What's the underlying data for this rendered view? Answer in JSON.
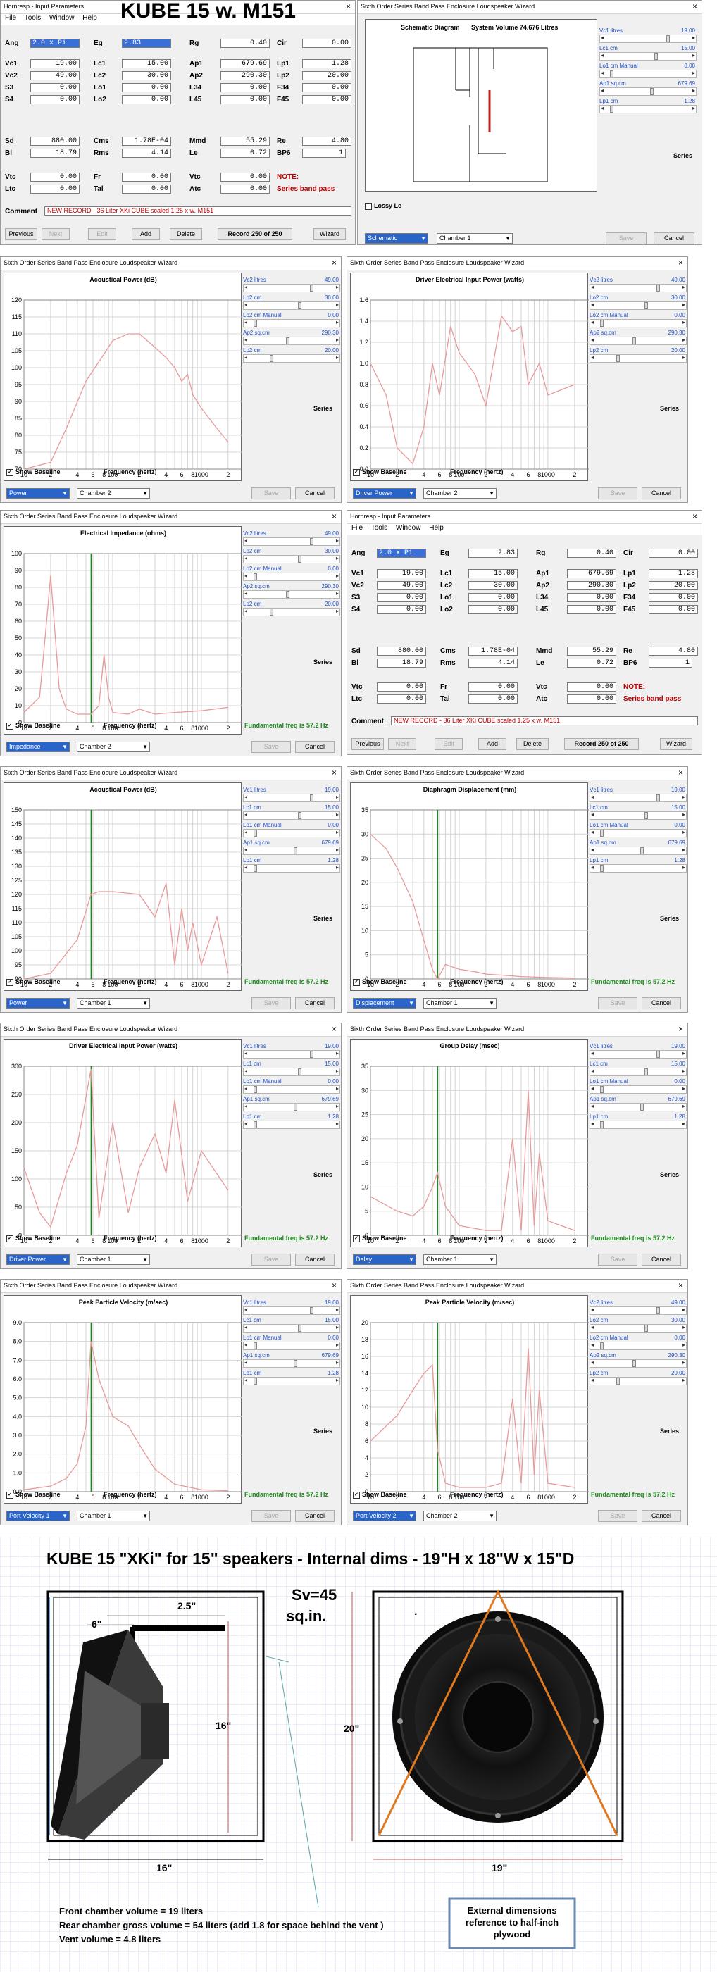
{
  "inputs": {
    "title": "Hornresp - Input Parameters",
    "banner": "KUBE 15 w. M151",
    "menu": [
      "File",
      "Tools",
      "Window",
      "Help"
    ],
    "params": [
      {
        "k": "Ang",
        "v": "2.0 x Pi"
      },
      {
        "k": "Eg",
        "v": "2.83"
      },
      {
        "k": "Rg",
        "v": "0.40"
      },
      {
        "k": "Cir",
        "v": "0.00"
      },
      {
        "k": "Vc1",
        "v": "19.00"
      },
      {
        "k": "Lc1",
        "v": "15.00"
      },
      {
        "k": "Ap1",
        "v": "679.69"
      },
      {
        "k": "Lp1",
        "v": "1.28"
      },
      {
        "k": "Vc2",
        "v": "49.00"
      },
      {
        "k": "Lc2",
        "v": "30.00"
      },
      {
        "k": "Ap2",
        "v": "290.30"
      },
      {
        "k": "Lp2",
        "v": "20.00"
      },
      {
        "k": "S3",
        "v": "0.00"
      },
      {
        "k": "Lo1",
        "v": "0.00"
      },
      {
        "k": "L34",
        "v": "0.00"
      },
      {
        "k": "F34",
        "v": "0.00"
      },
      {
        "k": "S4",
        "v": "0.00"
      },
      {
        "k": "Lo2",
        "v": "0.00"
      },
      {
        "k": "L45",
        "v": "0.00"
      },
      {
        "k": "F45",
        "v": "0.00"
      },
      {
        "k": "Sd",
        "v": "880.00"
      },
      {
        "k": "Cms",
        "v": "1.78E-04"
      },
      {
        "k": "Mmd",
        "v": "55.29"
      },
      {
        "k": "Re",
        "v": "4.80"
      },
      {
        "k": "Bl",
        "v": "18.79"
      },
      {
        "k": "Rms",
        "v": "4.14"
      },
      {
        "k": "Le",
        "v": "0.72"
      },
      {
        "k": "BP6",
        "v": "1"
      },
      {
        "k": "Vtc",
        "v": "0.00"
      },
      {
        "k": "Fr",
        "v": "0.00"
      },
      {
        "k": "Vtc",
        "v": "0.00"
      },
      {
        "k": "NOTE:",
        "v": ""
      },
      {
        "k": "Ltc",
        "v": "0.00"
      },
      {
        "k": "Tal",
        "v": "0.00"
      },
      {
        "k": "Atc",
        "v": "0.00"
      },
      {
        "k": "Series band pass",
        "v": ""
      }
    ],
    "comment_label": "Comment",
    "comment": "NEW RECORD - 36 Liter XKi CUBE   scaled 1.25 x  w. M151",
    "comment2": "NEW RECORD - 36 Liter XKi CUBE  scaled 1.25 x  w. M151",
    "buttons": [
      "Previous",
      "Next",
      "Edit",
      "Add",
      "Delete",
      "Record 250 of 250",
      "Wizard"
    ]
  },
  "schematic": {
    "title": "Sixth Order Series Band Pass Enclosure Loudspeaker Wizard",
    "heading": "Schematic Diagram",
    "volume": "System Volume 74.676 Litres",
    "lossy": "Lossy Le",
    "mode": "Schematic",
    "chamber": "Chamber 1",
    "save": "Save",
    "cancel": "Cancel"
  },
  "common": {
    "wizard_title": "Sixth Order Series Band Pass Enclosure Loudspeaker Wizard",
    "show_baseline": "Show Baseline",
    "series": "Series",
    "freq_label": "Frequency (hertz)",
    "fund": "Fundamental freq is 57.2 Hz",
    "save": "Save",
    "cancel": "Cancel",
    "ch1": "Chamber 1",
    "ch2": "Chamber 2",
    "x_ticks": [
      "10",
      "2",
      "4",
      "6",
      "8",
      "100",
      "2",
      "4",
      "6",
      "8",
      "1000",
      "2"
    ]
  },
  "controls_ch1": [
    {
      "label": "Vc1  litres",
      "value": "19.00",
      "pos": 0.75
    },
    {
      "label": "Lc1  cm",
      "value": "15.00",
      "pos": 0.6
    },
    {
      "label": "Lo1  cm  Manual",
      "value": "0.00",
      "pos": 0.05
    },
    {
      "label": "Ap1  sq.cm",
      "value": "679.69",
      "pos": 0.55
    },
    {
      "label": "Lp1  cm",
      "value": "1.28",
      "pos": 0.05
    }
  ],
  "controls_ch2": [
    {
      "label": "Vc2  litres",
      "value": "49.00",
      "pos": 0.75
    },
    {
      "label": "Lo2  cm",
      "value": "30.00",
      "pos": 0.6
    },
    {
      "label": "Lo2  cm  Manual",
      "value": "0.00",
      "pos": 0.05
    },
    {
      "label": "Ap2  sq.cm",
      "value": "290.30",
      "pos": 0.45
    },
    {
      "label": "Lp2  cm",
      "value": "20.00",
      "pos": 0.25
    }
  ],
  "charts": [
    {
      "id": "c1",
      "title": "Acoustical Power (dB)",
      "mode": "Power",
      "chamber": "Chamber 2",
      "ch": 2,
      "y_ticks": [
        "120",
        "115",
        "110",
        "105",
        "100",
        "95",
        "90",
        "85",
        "80",
        "75",
        "70"
      ],
      "fund": false,
      "chart_data": {
        "type": "line",
        "ylim": [
          70,
          120
        ],
        "x": [
          10,
          20,
          30,
          50,
          80,
          100,
          150,
          200,
          300,
          400,
          500,
          600,
          700,
          800,
          1000,
          1500,
          2000
        ],
        "values": [
          70,
          72,
          82,
          96,
          104,
          108,
          110,
          110,
          106,
          103,
          100,
          96,
          98,
          92,
          88,
          82,
          78
        ]
      }
    },
    {
      "id": "c2",
      "title": "Driver Electrical Input Power (watts)",
      "mode": "Driver Power",
      "chamber": "Chamber 2",
      "ch": 2,
      "y_ticks": [
        "1.6",
        "1.4",
        "1.2",
        "1.0",
        "0.8",
        "0.6",
        "0.4",
        "0.2",
        "0.0"
      ],
      "fund": false,
      "chart_data": {
        "type": "line",
        "ylim": [
          0,
          1.6
        ],
        "x": [
          10,
          15,
          20,
          30,
          40,
          50,
          60,
          80,
          100,
          150,
          200,
          300,
          400,
          500,
          600,
          800,
          1000,
          2000
        ],
        "values": [
          1.0,
          0.7,
          0.2,
          0.05,
          0.4,
          1.0,
          0.7,
          1.35,
          1.1,
          0.9,
          0.6,
          1.45,
          1.3,
          1.35,
          0.8,
          1.0,
          0.7,
          0.8
        ]
      }
    },
    {
      "id": "c3",
      "title": "Electrical Impedance (ohms)",
      "mode": "Impedance",
      "chamber": "Chamber 2",
      "ch": 2,
      "y_ticks": [
        "100",
        "90",
        "80",
        "70",
        "60",
        "50",
        "40",
        "30",
        "20",
        "10",
        "0"
      ],
      "fund": true,
      "chart_data": {
        "type": "line",
        "ylim": [
          0,
          100
        ],
        "x": [
          10,
          15,
          18,
          20,
          25,
          30,
          40,
          57,
          70,
          80,
          90,
          100,
          150,
          200,
          300,
          500,
          1000,
          2000
        ],
        "values": [
          6,
          15,
          60,
          87,
          20,
          8,
          5,
          5,
          10,
          40,
          15,
          6,
          5,
          8,
          5,
          6,
          7,
          9
        ]
      }
    },
    {
      "id": "c4",
      "title": "Acoustical Power (dB)",
      "mode": "Power",
      "chamber": "Chamber 1",
      "ch": 1,
      "y_ticks": [
        "150",
        "145",
        "140",
        "135",
        "130",
        "125",
        "120",
        "115",
        "110",
        "105",
        "100",
        "95",
        "90"
      ],
      "fund": true,
      "chart_data": {
        "type": "line",
        "ylim": [
          90,
          150
        ],
        "x": [
          10,
          20,
          30,
          40,
          57,
          70,
          100,
          200,
          300,
          400,
          500,
          600,
          700,
          800,
          1000,
          1500,
          2000
        ],
        "values": [
          90,
          92,
          99,
          104,
          120,
          121,
          121,
          120,
          112,
          124,
          95,
          115,
          100,
          110,
          95,
          112,
          92
        ]
      }
    },
    {
      "id": "c5",
      "title": "Diaphragm Displacement (mm)",
      "mode": "Displacement",
      "chamber": "Chamber 1",
      "ch": 1,
      "y_ticks": [
        "35",
        "30",
        "25",
        "20",
        "15",
        "10",
        "5",
        "0"
      ],
      "fund": true,
      "chart_data": {
        "type": "line",
        "ylim": [
          0,
          35
        ],
        "x": [
          10,
          15,
          20,
          30,
          40,
          50,
          57,
          70,
          100,
          150,
          200,
          300,
          500,
          1000,
          2000
        ],
        "values": [
          30,
          27,
          23,
          16,
          8,
          2,
          0,
          3,
          2,
          1.5,
          1,
          0.8,
          0.5,
          0.3,
          0.2
        ]
      }
    },
    {
      "id": "c6",
      "title": "Driver Electrical Input Power (watts)",
      "mode": "Driver Power",
      "chamber": "Chamber 1",
      "ch": 1,
      "y_ticks": [
        "300",
        "250",
        "200",
        "150",
        "100",
        "50",
        "0"
      ],
      "fund": true,
      "chart_data": {
        "type": "line",
        "ylim": [
          0,
          300
        ],
        "x": [
          10,
          15,
          20,
          30,
          40,
          57,
          70,
          100,
          150,
          200,
          300,
          400,
          500,
          700,
          1000,
          2000
        ],
        "values": [
          120,
          40,
          15,
          110,
          160,
          295,
          30,
          200,
          40,
          120,
          180,
          110,
          240,
          60,
          150,
          80
        ]
      }
    },
    {
      "id": "c7",
      "title": "Group Delay (msec)",
      "mode": "Delay",
      "chamber": "Chamber 1",
      "ch": 1,
      "y_ticks": [
        "35",
        "30",
        "25",
        "20",
        "15",
        "10",
        "5",
        "0"
      ],
      "fund": true,
      "chart_data": {
        "type": "line",
        "ylim": [
          0,
          35
        ],
        "x": [
          10,
          20,
          30,
          40,
          50,
          57,
          70,
          100,
          200,
          300,
          400,
          500,
          600,
          700,
          800,
          1000,
          2000
        ],
        "values": [
          8,
          5,
          4,
          6,
          10,
          13,
          6,
          2,
          1,
          1,
          20,
          1,
          30,
          2,
          17,
          3,
          1
        ]
      }
    },
    {
      "id": "c8",
      "title": "Peak Particle Velocity (m/sec)",
      "mode": "Port Velocity 1",
      "chamber": "Chamber 1",
      "ch": 1,
      "y_ticks": [
        "9.0",
        "8.0",
        "7.0",
        "6.0",
        "5.0",
        "4.0",
        "3.0",
        "2.0",
        "1.0",
        "0.0"
      ],
      "fund": true,
      "chart_data": {
        "type": "line",
        "ylim": [
          0,
          9
        ],
        "x": [
          10,
          20,
          30,
          40,
          50,
          57,
          70,
          100,
          150,
          200,
          300,
          500,
          1000,
          2000
        ],
        "values": [
          0.1,
          0.3,
          0.7,
          1.5,
          3.5,
          8.0,
          6.0,
          4.0,
          3.5,
          2.5,
          1.2,
          0.4,
          0.1,
          0.05
        ]
      }
    },
    {
      "id": "c9",
      "title": "Peak Particle Velocity (m/sec)",
      "mode": "Port Velocity 2",
      "chamber": "Chamber 2",
      "ch": 2,
      "y_ticks": [
        "20",
        "18",
        "16",
        "14",
        "12",
        "10",
        "8",
        "6",
        "4",
        "2",
        "0"
      ],
      "fund": true,
      "chart_data": {
        "type": "line",
        "ylim": [
          0,
          20
        ],
        "x": [
          10,
          20,
          30,
          40,
          50,
          57,
          70,
          100,
          200,
          300,
          400,
          500,
          600,
          700,
          800,
          1000,
          2000
        ],
        "values": [
          6,
          9,
          12,
          14,
          15,
          5,
          1,
          0.5,
          0.5,
          1,
          11,
          1,
          17,
          2,
          12,
          1,
          0.5
        ]
      }
    }
  ],
  "drawing": {
    "title": "KUBE 15 \"XKi\" for 15\" speakers - Internal dims - 19\"H x 18\"W x 15\"D",
    "sv": "Sv=45",
    "sqin": "sq.in.",
    "dim_25": "2.5\"",
    "dim_6": "6\"",
    "dim_16v": "16\"",
    "dim_20": "20\"",
    "dim_16h": "16\"",
    "dim_19": "19\"",
    "note1": "Front chamber volume = 19 liters",
    "note2": "Rear chamber gross volume = 54 liters   (add 1.8 for space behind the vent )",
    "note3": "Vent volume = 4.8 liters",
    "box": "External dimensions reference to half-inch plywood",
    "dot": "."
  }
}
